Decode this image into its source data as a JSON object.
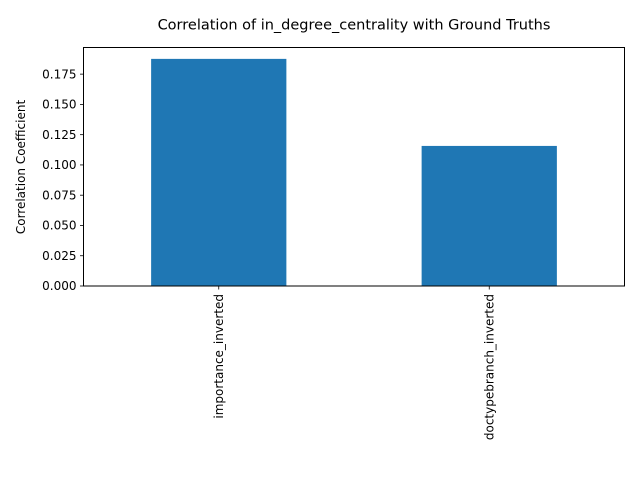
{
  "chart_data": {
    "type": "bar",
    "title": "Correlation of in_degree_centrality with Ground Truths",
    "xlabel": "",
    "ylabel": "Correlation Coefficient",
    "categories": [
      "importance_inverted",
      "doctypebranch_inverted"
    ],
    "values": [
      0.1876,
      0.1157
    ],
    "ylim": [
      0,
      0.197
    ],
    "yticks": [
      0.0,
      0.025,
      0.05,
      0.075,
      0.1,
      0.125,
      0.15,
      0.175
    ],
    "ytick_labels": [
      "0.000",
      "0.025",
      "0.050",
      "0.075",
      "0.100",
      "0.125",
      "0.150",
      "0.175"
    ],
    "bar_color": "#1f77b4",
    "grid": false,
    "legend": "none"
  }
}
